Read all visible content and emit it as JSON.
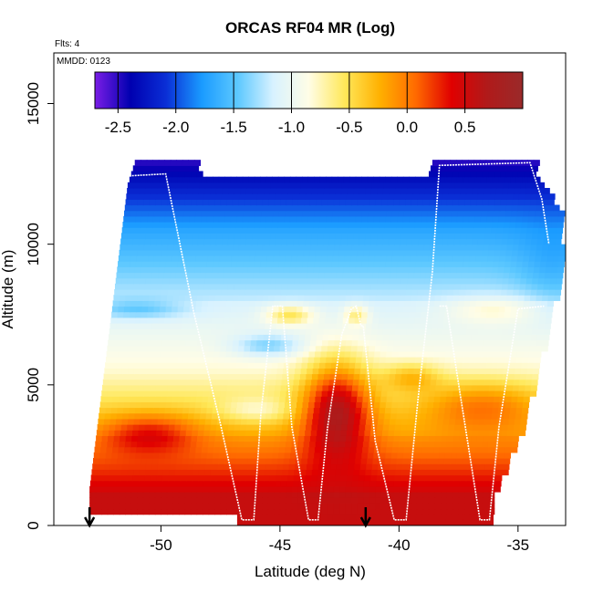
{
  "chart_data": {
    "type": "heatmap",
    "title": "ORCAS RF04 MR (Log)",
    "flights_label": "Flts: 4",
    "date_label": "MMDD: 0123",
    "xlabel": "Latitude (deg N)",
    "ylabel": "Altitude (m)",
    "xlim": [
      -54.5,
      -33
    ],
    "ylim": [
      0,
      16800
    ],
    "x_ticks": [
      -50,
      -45,
      -40,
      -35
    ],
    "x_tick_labels": [
      "-50",
      "-45",
      "-40",
      "-35"
    ],
    "y_ticks": [
      0,
      5000,
      10000,
      15000
    ],
    "y_tick_labels": [
      "0",
      "5000",
      "10000",
      "15000"
    ],
    "colorbar": {
      "range": [
        -2.7,
        1.0
      ],
      "ticks": [
        -2.5,
        -2.0,
        -1.5,
        -1.0,
        -0.5,
        0.0,
        0.5
      ],
      "tick_labels": [
        "-2.5",
        "-2.0",
        "-1.5",
        "-1.0",
        "-0.5",
        "0.0",
        "0.5"
      ],
      "colors": [
        "#7a1de6",
        "#0000b0",
        "#0a2fd6",
        "#1a9bff",
        "#5cc8ff",
        "#d8f2ff",
        "#fffde6",
        "#ffe85a",
        "#ffb000",
        "#ff6a00",
        "#e00000",
        "#b01a1a",
        "#9a2a2a"
      ]
    },
    "flight_track": [
      [
        -53.0,
        2300
      ],
      [
        -52.6,
        7000
      ],
      [
        -52.0,
        12400
      ],
      [
        -49.8,
        12500
      ],
      [
        -48.6,
        7500
      ],
      [
        -47.5,
        3600
      ],
      [
        -46.6,
        200
      ],
      [
        -46.1,
        200
      ],
      [
        -45.8,
        4000
      ],
      [
        -45.3,
        7800
      ],
      [
        -44.9,
        7800
      ],
      [
        -44.5,
        3500
      ],
      [
        -43.8,
        200
      ],
      [
        -43.4,
        200
      ],
      [
        -43.0,
        3500
      ],
      [
        -42.4,
        6800
      ],
      [
        -42.0,
        7700
      ],
      [
        -41.8,
        7800
      ],
      [
        -41.6,
        7100
      ],
      [
        -41.5,
        7100
      ],
      [
        -41.0,
        3000
      ],
      [
        -40.2,
        200
      ],
      [
        -39.7,
        200
      ],
      [
        -39.2,
        4500
      ],
      [
        -38.6,
        9000
      ],
      [
        -38.3,
        12800
      ],
      [
        -34.5,
        12900
      ],
      [
        -34.0,
        11600
      ],
      [
        -33.7,
        10000
      ]
    ],
    "flight_track_branch": [
      [
        -38.3,
        7800
      ],
      [
        -38.0,
        7800
      ],
      [
        -37.4,
        4500
      ],
      [
        -36.6,
        200
      ],
      [
        -36.2,
        200
      ],
      [
        -35.8,
        3500
      ],
      [
        -35.0,
        7700
      ],
      [
        -33.9,
        7800
      ]
    ],
    "markers": [
      {
        "type": "arrow-down",
        "x": -53.0
      },
      {
        "type": "arrow-down",
        "x": -41.4
      }
    ]
  }
}
